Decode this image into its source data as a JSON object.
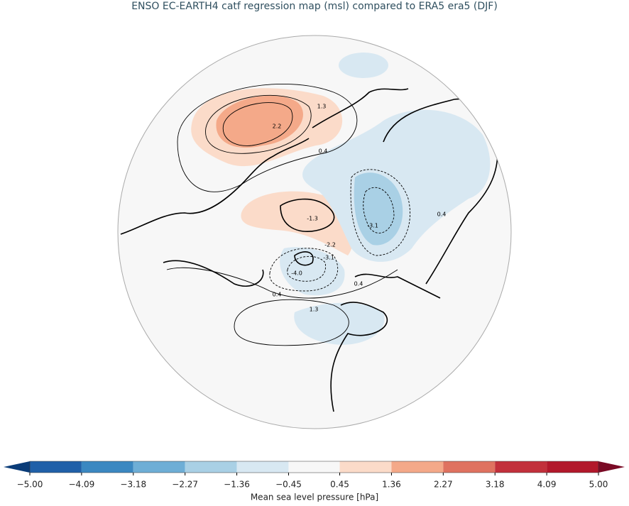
{
  "title": "ENSO EC-EARTH4 catf regression map (msl) compared to ERA5 era5 (DJF)",
  "contour_labels": [
    "1.3",
    "2.2",
    "0.4",
    "-1.3",
    "-2.2",
    "-3.1",
    "-3.1",
    "-4.0",
    "0.4",
    "0.4",
    "1.3",
    "0.4"
  ],
  "colorbar": {
    "label": "Mean sea level pressure [hPa]",
    "ticks": [
      {
        "value": -5.0,
        "label": "−5.00"
      },
      {
        "value": -4.09,
        "label": "−4.09"
      },
      {
        "value": -3.18,
        "label": "−3.18"
      },
      {
        "value": -2.27,
        "label": "−2.27"
      },
      {
        "value": -1.36,
        "label": "−1.36"
      },
      {
        "value": -0.45,
        "label": "−0.45"
      },
      {
        "value": 0.45,
        "label": "0.45"
      },
      {
        "value": 1.36,
        "label": "1.36"
      },
      {
        "value": 2.27,
        "label": "2.27"
      },
      {
        "value": 3.18,
        "label": "3.18"
      },
      {
        "value": 4.09,
        "label": "4.09"
      },
      {
        "value": 5.0,
        "label": "5.00"
      }
    ],
    "colors": [
      "#2060a8",
      "#3b88c1",
      "#6eaed6",
      "#a9d0e5",
      "#d8e8f2",
      "#f7f7f7",
      "#fbdbc9",
      "#f4a989",
      "#df7260",
      "#c2303b",
      "#b2182b"
    ],
    "under_color": "#0a3c78",
    "over_color": "#7a0a25"
  }
}
